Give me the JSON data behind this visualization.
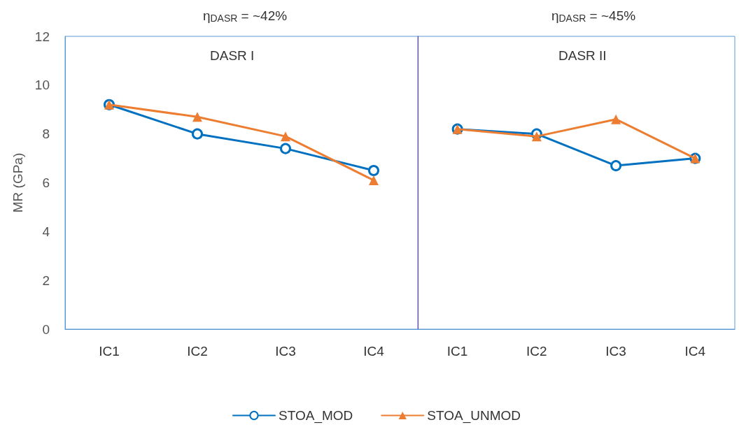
{
  "chart_data": [
    {
      "type": "line",
      "title": "η$_{DASR}$ = ~42%",
      "annotations": [
        "DASR I"
      ],
      "categories": [
        "IC1",
        "IC2",
        "IC3",
        "IC4"
      ],
      "ylabel": "MR (GPa)",
      "ylim": [
        0,
        12
      ],
      "yticks": [
        0,
        2,
        4,
        6,
        8,
        10,
        12
      ],
      "grid": false,
      "legend": "bottom",
      "series": [
        {
          "name": "STOA_MOD",
          "color": "#0070c0",
          "marker": "circle",
          "values": [
            9.2,
            8.0,
            7.4,
            6.5
          ]
        },
        {
          "name": "STOA_UNMOD",
          "color": "#ed7d31",
          "marker": "triangle",
          "values": [
            9.2,
            8.7,
            7.9,
            6.1
          ]
        }
      ]
    },
    {
      "type": "line",
      "title": "η$_{DASR}$ = ~45%",
      "annotations": [
        "DASR II"
      ],
      "categories": [
        "IC1",
        "IC2",
        "IC3",
        "IC4"
      ],
      "ylim": [
        0,
        12
      ],
      "tick_labels": "x",
      "grid": false,
      "legend": false,
      "series": [
        {
          "color": "#0070c0",
          "marker": "circle",
          "values": [
            8.2,
            8.0,
            6.7,
            7.0
          ]
        },
        {
          "color": "#ed7d31",
          "marker": "triangle",
          "values": [
            8.2,
            7.9,
            8.6,
            7.0
          ]
        }
      ]
    }
  ]
}
